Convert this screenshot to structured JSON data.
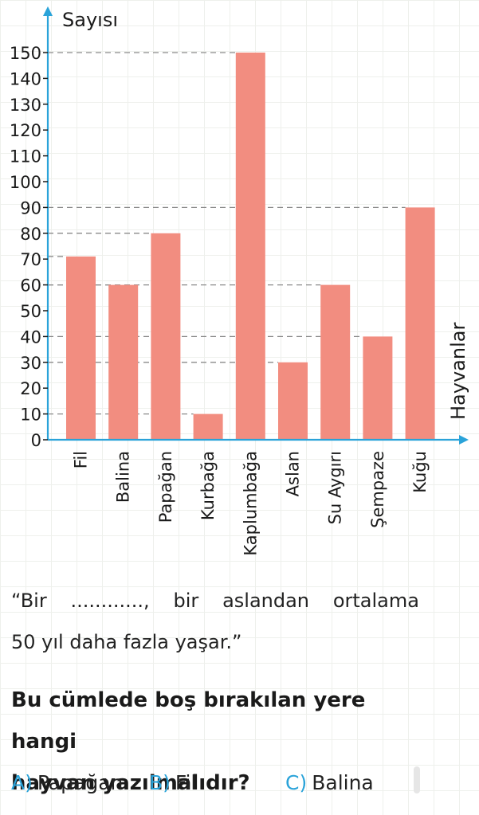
{
  "chart_data": {
    "type": "bar",
    "ylabel": "Sayısı",
    "xlabel": "Hayvanlar",
    "y_ticks": [
      0,
      10,
      20,
      30,
      40,
      50,
      60,
      70,
      80,
      90,
      100,
      110,
      120,
      130,
      140,
      150
    ],
    "ylim": [
      0,
      150
    ],
    "categories": [
      "Fil",
      "Balina",
      "Papağan",
      "Kurbağa",
      "Kaplumbağa",
      "Aslan",
      "Su Aygırı",
      "Şempaze",
      "Kuğu"
    ],
    "values": [
      71,
      60,
      80,
      10,
      150,
      30,
      60,
      40,
      90
    ],
    "bar_color": "#f28d80",
    "axis_color": "#2aa3d9",
    "gridlines": "dashed reference lines from bar tops to y-axis"
  },
  "sentence": {
    "words": [
      "“Bir",
      "............,",
      "bir",
      "aslandan",
      "ortalama"
    ],
    "line2": "50 yıl daha fazla yaşar.”"
  },
  "question": {
    "line1": "Bu cümlede boş bırakılan yere hangi",
    "line2": "hayvan yazılmalıdır?"
  },
  "options": [
    {
      "letter": "A)",
      "text": "Papağan"
    },
    {
      "letter": "B)",
      "text": "Fil"
    },
    {
      "letter": "C)",
      "text": "Balina"
    }
  ]
}
